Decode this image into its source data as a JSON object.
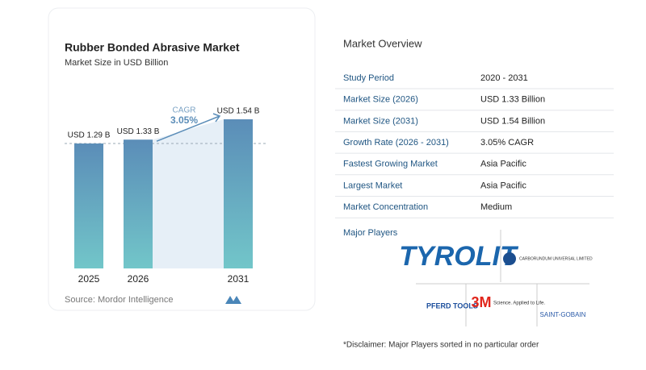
{
  "chart_data": {
    "type": "bar",
    "title": "Rubber Bonded Abrasive Market",
    "subtitle": "Market Size in USD Billion",
    "categories": [
      "2025",
      "2026",
      "2031"
    ],
    "values": [
      1.29,
      1.33,
      1.54
    ],
    "value_labels": [
      "USD 1.29 B",
      "USD 1.33 B",
      "USD 1.54 B"
    ],
    "annotation_label": "CAGR",
    "annotation_value": "3.05%",
    "source": "Source:  Mordor Intelligence"
  },
  "overview": {
    "title": "Market Overview",
    "rows": [
      [
        "Study Period",
        "2020 - 2031"
      ],
      [
        "Market Size (2026)",
        "USD 1.33 Billion"
      ],
      [
        "Market Size (2031)",
        "USD 1.54 Billion"
      ],
      [
        "Growth Rate (2026 - 2031)",
        "3.05% CAGR"
      ],
      [
        "Fastest Growing Market",
        "Asia Pacific"
      ],
      [
        "Largest Market",
        "Asia Pacific"
      ],
      [
        "Market Concentration",
        "Medium"
      ]
    ],
    "players_title": "Major Players",
    "players": [
      "TYROLIT",
      "CARBORUNDUM UNIVERSAL LIMITED",
      "PFERD TOOLS",
      "3M",
      "Science. Applied to Life.",
      "SAINT-GOBAIN"
    ],
    "disclaimer": "*Disclaimer: Major Players sorted in no particular order"
  }
}
